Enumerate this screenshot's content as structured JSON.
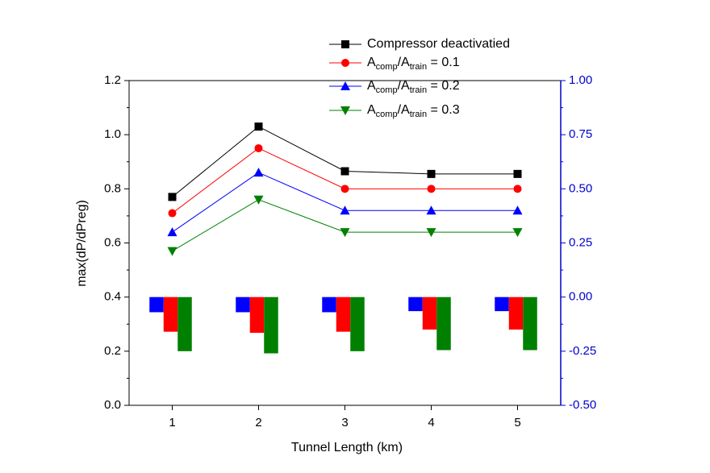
{
  "chart_data": {
    "type": "line",
    "xlabel": "Tunnel Length (km)",
    "ylabel": "max(dP/dPreg)",
    "categories": [
      "1",
      "2",
      "3",
      "4",
      "5"
    ],
    "ylim": [
      0,
      1.2
    ],
    "yticks": [
      {
        "value": 0,
        "label": "0.0"
      },
      0.2,
      0.4,
      0.6,
      0.8,
      {
        "value": 1,
        "label": "1.0"
      },
      1.2
    ],
    "y2lim": [
      -0.5,
      1
    ],
    "y2ticks": [
      {
        "value": -0.5,
        "label": "-0.50"
      },
      -0.25,
      {
        "value": 0,
        "label": "0.00"
      },
      0.25,
      {
        "value": 0.5,
        "label": "0.50"
      },
      0.75,
      {
        "value": 1,
        "label": "1.00"
      }
    ],
    "y2color": "#0000cc",
    "series": [
      {
        "name": "Compressor deactivatied",
        "color": "#000000",
        "marker": "square",
        "values": [
          0.77,
          1.03,
          0.865,
          0.855,
          0.855
        ]
      },
      {
        "name": "Acomp/Atrain = 0.1",
        "color": "#ff0000",
        "marker": "circle",
        "values": [
          0.71,
          0.95,
          0.8,
          0.8,
          0.8
        ]
      },
      {
        "name": "Acomp/Atrain = 0.2",
        "color": "#0000ff",
        "marker": "triangle-up",
        "values": [
          0.64,
          0.86,
          0.72,
          0.72,
          0.72
        ]
      },
      {
        "name": "Acomp/Atrain = 0.3",
        "color": "#008000",
        "marker": "triangle-down",
        "values": [
          0.57,
          0.76,
          0.64,
          0.64,
          0.64
        ]
      },
      {
        "type": "bar",
        "axis": "y2",
        "color": "#0000ff",
        "values": [
          -0.07,
          -0.07,
          -0.07,
          -0.065,
          -0.065
        ]
      },
      {
        "type": "bar",
        "axis": "y2",
        "color": "#ff0000",
        "values": [
          -0.16,
          -0.165,
          -0.16,
          -0.15,
          -0.15
        ]
      },
      {
        "type": "bar",
        "axis": "y2",
        "color": "#008000",
        "values": [
          -0.25,
          -0.26,
          -0.25,
          -0.245,
          -0.245
        ]
      }
    ]
  }
}
